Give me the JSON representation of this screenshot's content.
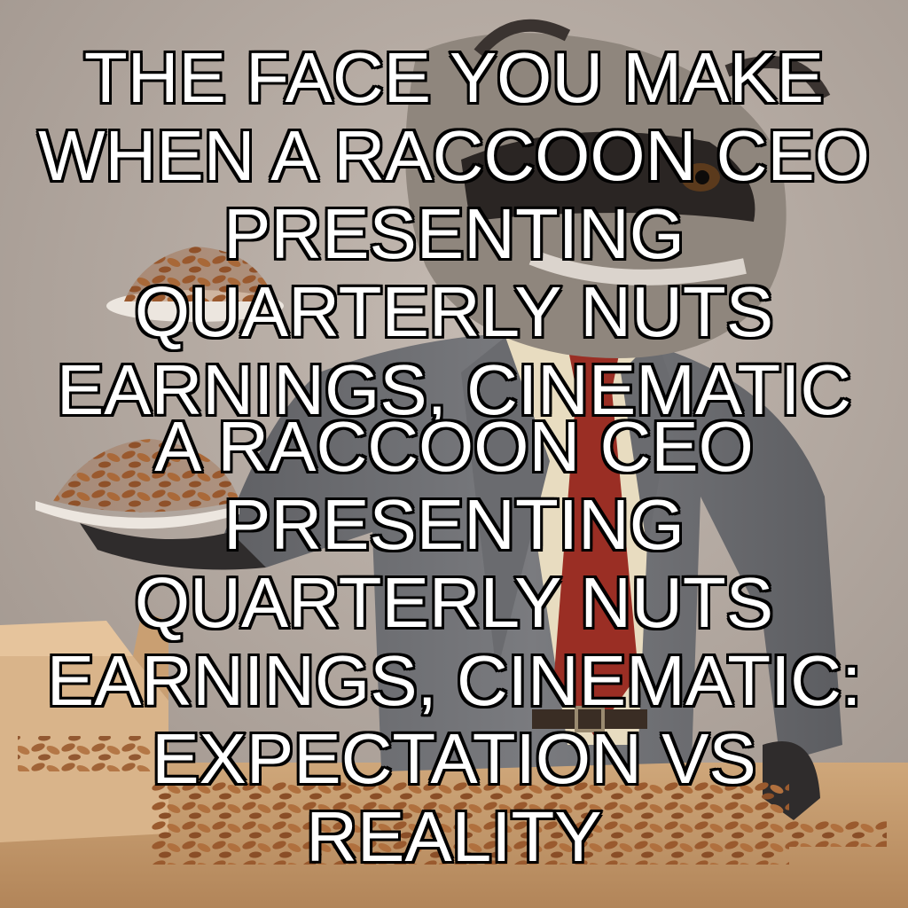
{
  "meme": {
    "top_caption": {
      "lines": [
        "THE FACE YOU MAKE",
        "WHEN A RACCOON CEO",
        "PRESENTING",
        "QUARTERLY NUTS",
        "EARNINGS, CINEMATIC"
      ]
    },
    "bottom_caption": {
      "lines": [
        "A RACCOON CEO",
        "PRESENTING",
        "QUARTERLY NUTS",
        "EARNINGS, CINEMATIC:",
        "EXPECTATION VS",
        "REALITY"
      ]
    }
  },
  "scene": {
    "subject": "raccoon in grey suit and red tie holding a plate of almonds",
    "colors": {
      "background": "#b6aba3",
      "suit": "#6e6f72",
      "shirt": "#e8dcc0",
      "tie": "#9a2e24",
      "table": "#c49a6c",
      "almond": "#9a5a2e",
      "box": "#d9b48a"
    }
  }
}
